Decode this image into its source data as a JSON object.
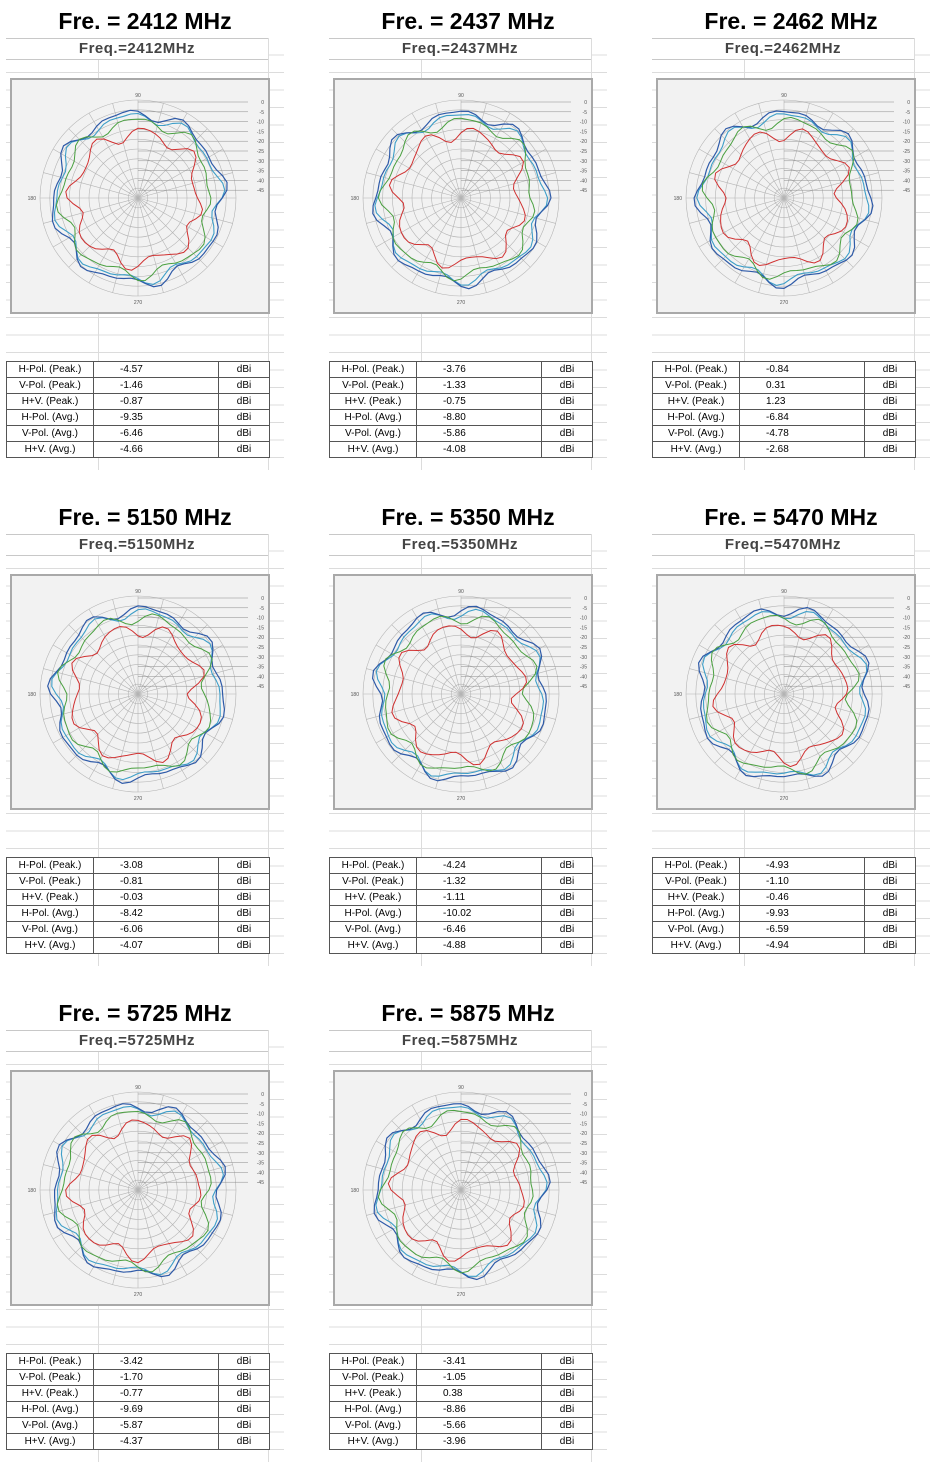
{
  "colors": {
    "h_pol": "#d03030",
    "v_pol": "#4aa040",
    "hv": "#2e5aa8",
    "hv2": "#3d9ec8",
    "grid": "#b4b4b4"
  },
  "polar_axis_labels": {
    "top": "90",
    "left": "180",
    "bottom": "270"
  },
  "radial_ticks": [
    "0",
    "-5",
    "-10",
    "-15",
    "-20",
    "-25",
    "-30",
    "-35",
    "-40",
    "-45"
  ],
  "chart_data": [
    {
      "type": "table",
      "heading": "Fre. = 2412 MHz",
      "freq_label": "Freq.=2412MHz",
      "rows": [
        {
          "label": "H-Pol. (Peak.)",
          "value": "-4.57",
          "unit": "dBi"
        },
        {
          "label": "V-Pol. (Peak.)",
          "value": "-1.46",
          "unit": "dBi"
        },
        {
          "label": "H+V. (Peak.)",
          "value": "-0.87",
          "unit": "dBi"
        },
        {
          "label": "H-Pol. (Avg.)",
          "value": "-9.35",
          "unit": "dBi"
        },
        {
          "label": "V-Pol. (Avg.)",
          "value": "-6.46",
          "unit": "dBi"
        },
        {
          "label": "H+V. (Avg.)",
          "value": "-4.66",
          "unit": "dBi"
        }
      ]
    },
    {
      "type": "table",
      "heading": "Fre. = 2437 MHz",
      "freq_label": "Freq.=2437MHz",
      "rows": [
        {
          "label": "H-Pol. (Peak.)",
          "value": "-3.76",
          "unit": "dBi"
        },
        {
          "label": "V-Pol. (Peak.)",
          "value": "-1.33",
          "unit": "dBi"
        },
        {
          "label": "H+V. (Peak.)",
          "value": "-0.75",
          "unit": "dBi"
        },
        {
          "label": "H-Pol. (Avg.)",
          "value": "-8.80",
          "unit": "dBi"
        },
        {
          "label": "V-Pol. (Avg.)",
          "value": "-5.86",
          "unit": "dBi"
        },
        {
          "label": "H+V. (Avg.)",
          "value": "-4.08",
          "unit": "dBi"
        }
      ]
    },
    {
      "type": "table",
      "heading": "Fre. = 2462 MHz",
      "freq_label": "Freq.=2462MHz",
      "rows": [
        {
          "label": "H-Pol. (Peak.)",
          "value": "-0.84",
          "unit": "dBi"
        },
        {
          "label": "V-Pol. (Peak.)",
          "value": "0.31",
          "unit": "dBi"
        },
        {
          "label": "H+V. (Peak.)",
          "value": "1.23",
          "unit": "dBi"
        },
        {
          "label": "H-Pol. (Avg.)",
          "value": "-6.84",
          "unit": "dBi"
        },
        {
          "label": "V-Pol. (Avg.)",
          "value": "-4.78",
          "unit": "dBi"
        },
        {
          "label": "H+V. (Avg.)",
          "value": "-2.68",
          "unit": "dBi"
        }
      ]
    },
    {
      "type": "table",
      "heading": "Fre. = 5150 MHz",
      "freq_label": "Freq.=5150MHz",
      "rows": [
        {
          "label": "H-Pol. (Peak.)",
          "value": "-3.08",
          "unit": "dBi"
        },
        {
          "label": "V-Pol. (Peak.)",
          "value": "-0.81",
          "unit": "dBi"
        },
        {
          "label": "H+V. (Peak.)",
          "value": "-0.03",
          "unit": "dBi"
        },
        {
          "label": "H-Pol. (Avg.)",
          "value": "-8.42",
          "unit": "dBi"
        },
        {
          "label": "V-Pol. (Avg.)",
          "value": "-6.06",
          "unit": "dBi"
        },
        {
          "label": "H+V. (Avg.)",
          "value": "-4.07",
          "unit": "dBi"
        }
      ]
    },
    {
      "type": "table",
      "heading": "Fre. = 5350 MHz",
      "freq_label": "Freq.=5350MHz",
      "rows": [
        {
          "label": "H-Pol. (Peak.)",
          "value": "-4.24",
          "unit": "dBi"
        },
        {
          "label": "V-Pol. (Peak.)",
          "value": "-1.32",
          "unit": "dBi"
        },
        {
          "label": "H+V. (Peak.)",
          "value": "-1.11",
          "unit": "dBi"
        },
        {
          "label": "H-Pol. (Avg.)",
          "value": "-10.02",
          "unit": "dBi"
        },
        {
          "label": "V-Pol. (Avg.)",
          "value": "-6.46",
          "unit": "dBi"
        },
        {
          "label": "H+V. (Avg.)",
          "value": "-4.88",
          "unit": "dBi"
        }
      ]
    },
    {
      "type": "table",
      "heading": "Fre. = 5470 MHz",
      "freq_label": "Freq.=5470MHz",
      "rows": [
        {
          "label": "H-Pol. (Peak.)",
          "value": "-4.93",
          "unit": "dBi"
        },
        {
          "label": "V-Pol. (Peak.)",
          "value": "-1.10",
          "unit": "dBi"
        },
        {
          "label": "H+V. (Peak.)",
          "value": "-0.46",
          "unit": "dBi"
        },
        {
          "label": "H-Pol. (Avg.)",
          "value": "-9.93",
          "unit": "dBi"
        },
        {
          "label": "V-Pol. (Avg.)",
          "value": "-6.59",
          "unit": "dBi"
        },
        {
          "label": "H+V. (Avg.)",
          "value": "-4.94",
          "unit": "dBi"
        }
      ]
    },
    {
      "type": "table",
      "heading": "Fre. = 5725 MHz",
      "freq_label": "Freq.=5725MHz",
      "rows": [
        {
          "label": "H-Pol. (Peak.)",
          "value": "-3.42",
          "unit": "dBi"
        },
        {
          "label": "V-Pol. (Peak.)",
          "value": "-1.70",
          "unit": "dBi"
        },
        {
          "label": "H+V. (Peak.)",
          "value": "-0.77",
          "unit": "dBi"
        },
        {
          "label": "H-Pol. (Avg.)",
          "value": "-9.69",
          "unit": "dBi"
        },
        {
          "label": "V-Pol. (Avg.)",
          "value": "-5.87",
          "unit": "dBi"
        },
        {
          "label": "H+V. (Avg.)",
          "value": "-4.37",
          "unit": "dBi"
        }
      ]
    },
    {
      "type": "table",
      "heading": "Fre. = 5875 MHz",
      "freq_label": "Freq.=5875MHz",
      "rows": [
        {
          "label": "H-Pol. (Peak.)",
          "value": "-3.41",
          "unit": "dBi"
        },
        {
          "label": "V-Pol. (Peak.)",
          "value": "-1.05",
          "unit": "dBi"
        },
        {
          "label": "H+V. (Peak.)",
          "value": "0.38",
          "unit": "dBi"
        },
        {
          "label": "H-Pol. (Avg.)",
          "value": "-8.86",
          "unit": "dBi"
        },
        {
          "label": "V-Pol. (Avg.)",
          "value": "-5.66",
          "unit": "dBi"
        },
        {
          "label": "H+V. (Avg.)",
          "value": "-3.96",
          "unit": "dBi"
        }
      ]
    }
  ]
}
